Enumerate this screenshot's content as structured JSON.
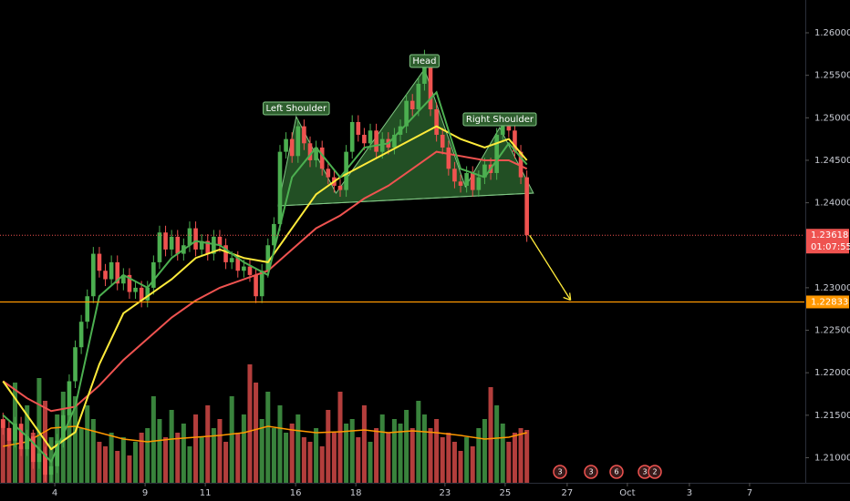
{
  "chart_data": {
    "type": "candlestick",
    "up_color": "#4caf50",
    "down_color": "#ef5350",
    "xlim": [
      -0.5,
      133.1
    ],
    "ylim": [
      1.20705,
      1.26386
    ],
    "vlim": [
      0,
      140
    ],
    "xticks": [
      {
        "value": 8.6,
        "label": "4"
      },
      {
        "value": 23.6,
        "label": "9"
      },
      {
        "value": 33.6,
        "label": "11"
      },
      {
        "value": 48.6,
        "label": "16"
      },
      {
        "value": 58.6,
        "label": "18"
      },
      {
        "value": 73.4,
        "label": "23"
      },
      {
        "value": 83.4,
        "label": "25"
      },
      {
        "value": 93.7,
        "label": "27"
      },
      {
        "value": 103.7,
        "label": "Oct"
      },
      {
        "value": 114.0,
        "label": "3"
      },
      {
        "value": 124.0,
        "label": "7"
      }
    ],
    "yticks": [
      {
        "value": 1.21,
        "label": "1.21000"
      },
      {
        "value": 1.215,
        "label": "1.21500"
      },
      {
        "value": 1.22,
        "label": "1.22000"
      },
      {
        "value": 1.225,
        "label": "1.22500"
      },
      {
        "value": 1.23,
        "label": "1.23000"
      },
      {
        "value": 1.24,
        "label": "1.24000"
      },
      {
        "value": 1.245,
        "label": "1.24500"
      },
      {
        "value": 1.25,
        "label": "1.25000"
      },
      {
        "value": 1.255,
        "label": "1.25500"
      },
      {
        "value": 1.26,
        "label": "1.26000"
      }
    ],
    "candles": [
      [
        1.2145,
        1.2153,
        1.2127,
        1.2135
      ],
      [
        1.2135,
        1.2143,
        1.2112,
        1.212
      ],
      [
        1.212,
        1.2148,
        1.2112,
        1.214
      ],
      [
        1.214,
        1.2148,
        1.2102,
        1.211
      ],
      [
        1.211,
        1.2133,
        1.2102,
        1.2125
      ],
      [
        1.2125,
        1.2133,
        1.2087,
        1.2095
      ],
      [
        1.2095,
        1.2113,
        1.2087,
        1.2105
      ],
      [
        1.2105,
        1.2113,
        1.2072,
        1.208
      ],
      [
        1.208,
        1.2098,
        1.2072,
        1.209
      ],
      [
        1.209,
        1.2128,
        1.2082,
        1.212
      ],
      [
        1.212,
        1.2158,
        1.2112,
        1.215
      ],
      [
        1.215,
        1.2198,
        1.2142,
        1.219
      ],
      [
        1.219,
        1.2238,
        1.2182,
        1.223
      ],
      [
        1.223,
        1.2268,
        1.2222,
        1.226
      ],
      [
        1.226,
        1.2298,
        1.2252,
        1.229
      ],
      [
        1.229,
        1.2348,
        1.2282,
        1.234
      ],
      [
        1.234,
        1.2348,
        1.2312,
        1.232
      ],
      [
        1.232,
        1.2328,
        1.2302,
        1.231
      ],
      [
        1.231,
        1.2338,
        1.2302,
        1.233
      ],
      [
        1.233,
        1.2338,
        1.2297,
        1.2305
      ],
      [
        1.2305,
        1.2323,
        1.2297,
        1.2315
      ],
      [
        1.2315,
        1.2323,
        1.2287,
        1.2295
      ],
      [
        1.2295,
        1.2308,
        1.2287,
        1.23
      ],
      [
        1.23,
        1.2308,
        1.2277,
        1.2285
      ],
      [
        1.2285,
        1.2308,
        1.2277,
        1.23
      ],
      [
        1.23,
        1.2338,
        1.2292,
        1.233
      ],
      [
        1.233,
        1.2373,
        1.2322,
        1.2365
      ],
      [
        1.2365,
        1.2373,
        1.2337,
        1.2345
      ],
      [
        1.2345,
        1.2368,
        1.2337,
        1.236
      ],
      [
        1.236,
        1.2368,
        1.2332,
        1.234
      ],
      [
        1.234,
        1.2358,
        1.2332,
        1.235
      ],
      [
        1.235,
        1.2378,
        1.2342,
        1.237
      ],
      [
        1.237,
        1.2378,
        1.2337,
        1.2345
      ],
      [
        1.2345,
        1.2363,
        1.2337,
        1.2355
      ],
      [
        1.2355,
        1.2363,
        1.2332,
        1.234
      ],
      [
        1.234,
        1.2368,
        1.2332,
        1.236
      ],
      [
        1.236,
        1.2368,
        1.2342,
        1.235
      ],
      [
        1.235,
        1.2358,
        1.2322,
        1.233
      ],
      [
        1.233,
        1.2343,
        1.2322,
        1.2335
      ],
      [
        1.2335,
        1.2343,
        1.2312,
        1.232
      ],
      [
        1.232,
        1.2333,
        1.2312,
        1.2325
      ],
      [
        1.2325,
        1.2333,
        1.2307,
        1.2315
      ],
      [
        1.2315,
        1.2323,
        1.2282,
        1.229
      ],
      [
        1.229,
        1.2328,
        1.2282,
        1.232
      ],
      [
        1.232,
        1.2358,
        1.2312,
        1.235
      ],
      [
        1.235,
        1.2383,
        1.2342,
        1.2375
      ],
      [
        1.2375,
        1.2468,
        1.2367,
        1.246
      ],
      [
        1.246,
        1.2483,
        1.2452,
        1.2475
      ],
      [
        1.2475,
        1.2483,
        1.2447,
        1.2455
      ],
      [
        1.2455,
        1.2498,
        1.2447,
        1.249
      ],
      [
        1.249,
        1.2498,
        1.2462,
        1.247
      ],
      [
        1.247,
        1.2478,
        1.2442,
        1.245
      ],
      [
        1.245,
        1.2473,
        1.2442,
        1.2465
      ],
      [
        1.2465,
        1.2473,
        1.2432,
        1.244
      ],
      [
        1.244,
        1.2448,
        1.2422,
        1.243
      ],
      [
        1.243,
        1.2438,
        1.2412,
        1.242
      ],
      [
        1.242,
        1.2428,
        1.2407,
        1.2415
      ],
      [
        1.2415,
        1.2468,
        1.2407,
        1.246
      ],
      [
        1.246,
        1.2503,
        1.2452,
        1.2495
      ],
      [
        1.2495,
        1.2503,
        1.2472,
        1.248
      ],
      [
        1.248,
        1.2488,
        1.2462,
        1.247
      ],
      [
        1.247,
        1.2493,
        1.2462,
        1.2485
      ],
      [
        1.2485,
        1.2493,
        1.2452,
        1.246
      ],
      [
        1.246,
        1.2483,
        1.2452,
        1.2475
      ],
      [
        1.2475,
        1.2483,
        1.2457,
        1.2465
      ],
      [
        1.2465,
        1.2488,
        1.2457,
        1.248
      ],
      [
        1.248,
        1.2498,
        1.2472,
        1.249
      ],
      [
        1.249,
        1.2528,
        1.2482,
        1.252
      ],
      [
        1.252,
        1.2528,
        1.2502,
        1.251
      ],
      [
        1.251,
        1.2548,
        1.2502,
        1.254
      ],
      [
        1.254,
        1.258,
        1.2532,
        1.256
      ],
      [
        1.256,
        1.2568,
        1.2502,
        1.251
      ],
      [
        1.251,
        1.2518,
        1.2472,
        1.248
      ],
      [
        1.248,
        1.2488,
        1.2457,
        1.2465
      ],
      [
        1.2465,
        1.2473,
        1.2432,
        1.244
      ],
      [
        1.244,
        1.2448,
        1.2417,
        1.2425
      ],
      [
        1.2425,
        1.2433,
        1.2412,
        1.242
      ],
      [
        1.242,
        1.2443,
        1.2412,
        1.2435
      ],
      [
        1.2435,
        1.2443,
        1.2407,
        1.2415
      ],
      [
        1.2415,
        1.2438,
        1.2407,
        1.243
      ],
      [
        1.243,
        1.2453,
        1.2422,
        1.2445
      ],
      [
        1.2445,
        1.2453,
        1.2427,
        1.2435
      ],
      [
        1.2435,
        1.2488,
        1.2427,
        1.248
      ],
      [
        1.248,
        1.2498,
        1.2472,
        1.249
      ],
      [
        1.249,
        1.2498,
        1.2477,
        1.2485
      ],
      [
        1.2485,
        1.2493,
        1.2452,
        1.246
      ],
      [
        1.246,
        1.2468,
        1.2422,
        1.243
      ],
      [
        1.243,
        1.2438,
        1.2354,
        1.2362
      ]
    ],
    "volume": [
      70,
      60,
      110,
      40,
      85,
      55,
      115,
      90,
      50,
      75,
      100,
      80,
      95,
      60,
      85,
      70,
      45,
      40,
      55,
      35,
      50,
      30,
      45,
      55,
      60,
      95,
      70,
      50,
      80,
      55,
      65,
      40,
      75,
      50,
      85,
      60,
      70,
      45,
      95,
      55,
      75,
      130,
      110,
      70,
      100,
      60,
      85,
      55,
      65,
      75,
      50,
      45,
      60,
      40,
      80,
      55,
      100,
      65,
      70,
      50,
      85,
      45,
      60,
      75,
      55,
      70,
      65,
      80,
      60,
      90,
      75,
      60,
      70,
      50,
      55,
      45,
      35,
      50,
      40,
      60,
      70,
      105,
      85,
      65,
      45,
      55,
      60,
      58
    ],
    "ma_x": [
      0,
      4,
      8,
      12,
      16,
      20,
      24,
      28,
      32,
      36,
      40,
      44,
      48,
      52,
      56,
      60,
      64,
      68,
      72,
      76,
      80,
      84,
      87
    ],
    "series": [
      {
        "color": "#ef5350",
        "values": [
          1.219,
          1.217,
          1.2155,
          1.216,
          1.2185,
          1.2215,
          1.224,
          1.2265,
          1.2285,
          1.23,
          1.231,
          1.232,
          1.2345,
          1.237,
          1.2385,
          1.2405,
          1.242,
          1.244,
          1.246,
          1.2455,
          1.245,
          1.245,
          1.244
        ]
      },
      {
        "color": "#ffeb3b",
        "values": [
          1.219,
          1.215,
          1.211,
          1.213,
          1.221,
          1.227,
          1.229,
          1.231,
          1.2335,
          1.2345,
          1.2335,
          1.233,
          1.237,
          1.241,
          1.243,
          1.2445,
          1.246,
          1.2475,
          1.249,
          1.2475,
          1.2465,
          1.2475,
          1.245
        ]
      },
      {
        "color": "#4caf50",
        "values": [
          1.215,
          1.2125,
          1.2095,
          1.216,
          1.229,
          1.2315,
          1.23,
          1.2335,
          1.2355,
          1.235,
          1.233,
          1.2315,
          1.243,
          1.2465,
          1.243,
          1.2465,
          1.247,
          1.25,
          1.253,
          1.244,
          1.243,
          1.247,
          1.2445
        ]
      }
    ],
    "volume_ma": {
      "color": "#ff9800",
      "values": [
        40,
        45,
        60,
        62,
        55,
        48,
        45,
        48,
        50,
        52,
        55,
        62,
        58,
        55,
        56,
        58,
        55,
        57,
        55,
        52,
        48,
        50,
        55
      ]
    },
    "pattern": {
      "points": [
        [
          45.7,
          1.23964
        ],
        [
          48.7,
          1.25014
        ],
        [
          55.3,
          1.24114
        ],
        [
          70.0,
          1.25571
        ],
        [
          76.8,
          1.24189
        ],
        [
          82.5,
          1.24885
        ],
        [
          88.1,
          1.24114
        ]
      ],
      "labels": [
        "Left Shoulder",
        "Head",
        "Right Shoulder"
      ]
    },
    "price_line": {
      "value": 1.23618,
      "label": "1.23618",
      "countdown": "01:07:55"
    },
    "target_line": {
      "value": 1.22833,
      "label": "1.22833"
    },
    "events": [
      "3",
      "3",
      "6",
      "3",
      "2"
    ]
  }
}
